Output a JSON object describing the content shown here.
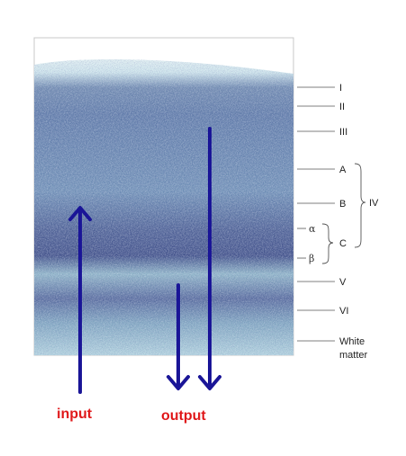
{
  "colors": {
    "arrow": "#1a1597",
    "io_label": "#e0191b",
    "tissue_pale": "#cfe6ec",
    "tissue_mid": "#6f8fb3",
    "tissue_dark": "#3f4f88",
    "leader": "#555555"
  },
  "layers": [
    {
      "id": "I",
      "label": "I"
    },
    {
      "id": "II",
      "label": "II"
    },
    {
      "id": "III",
      "label": "III"
    },
    {
      "id": "IVA",
      "label": "A"
    },
    {
      "id": "IVB",
      "label": "B"
    },
    {
      "id": "IVC",
      "label": "C"
    },
    {
      "id": "V",
      "label": "V"
    },
    {
      "id": "VI",
      "label": "VI"
    },
    {
      "id": "white",
      "label_line1": "White",
      "label_line2": "matter"
    }
  ],
  "group_label": "IV",
  "sublayers": {
    "alpha": "α",
    "beta": "β"
  },
  "io": {
    "input": "input",
    "output": "output"
  }
}
